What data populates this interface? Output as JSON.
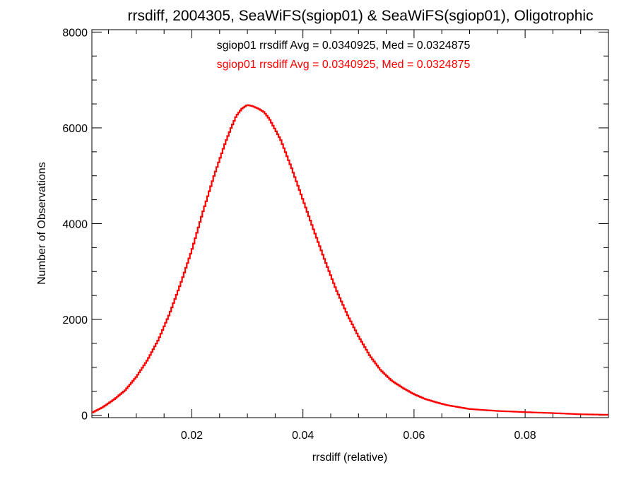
{
  "chart_data": {
    "type": "line",
    "title": "rrsdiff, 2004305, SeaWiFS(sgiop01) & SeaWiFS(sgiop01), Oligotrophic",
    "xlabel": "rrsdiff (relative)",
    "ylabel": "Number of Observations",
    "xlim": [
      0.002,
      0.095
    ],
    "ylim": [
      -50,
      8050
    ],
    "x_ticks": [
      "0.02",
      "0.04",
      "0.06",
      "0.08"
    ],
    "x_tick_values": [
      0.02,
      0.04,
      0.06,
      0.08
    ],
    "y_ticks": [
      "0",
      "2000",
      "4000",
      "6000",
      "8000"
    ],
    "y_tick_values": [
      0,
      2000,
      4000,
      6000,
      8000
    ],
    "grid": false,
    "step_plot": true,
    "annotations": [
      {
        "text": "sgiop01 rrsdiff Avg = 0.0340925, Med = 0.0324875",
        "color": "#000000"
      },
      {
        "text": "sgiop01 rrsdiff Avg = 0.0340925, Med = 0.0324875",
        "color": "#ff0000"
      }
    ],
    "series": [
      {
        "color": "#ff0000",
        "x": [
          0.002,
          0.004,
          0.006,
          0.008,
          0.01,
          0.012,
          0.014,
          0.016,
          0.018,
          0.02,
          0.022,
          0.024,
          0.026,
          0.027,
          0.028,
          0.029,
          0.03,
          0.031,
          0.032,
          0.033,
          0.034,
          0.036,
          0.038,
          0.04,
          0.042,
          0.044,
          0.046,
          0.048,
          0.05,
          0.052,
          0.054,
          0.056,
          0.058,
          0.06,
          0.062,
          0.064,
          0.066,
          0.068,
          0.07,
          0.075,
          0.08,
          0.085,
          0.09,
          0.095
        ],
        "y": [
          50,
          170,
          330,
          520,
          800,
          1150,
          1580,
          2120,
          2750,
          3450,
          4250,
          5000,
          5680,
          5980,
          6250,
          6400,
          6480,
          6450,
          6400,
          6330,
          6180,
          5750,
          5150,
          4500,
          3850,
          3220,
          2620,
          2100,
          1650,
          1250,
          940,
          720,
          570,
          440,
          340,
          270,
          210,
          170,
          130,
          90,
          65,
          45,
          20,
          10
        ]
      }
    ]
  }
}
